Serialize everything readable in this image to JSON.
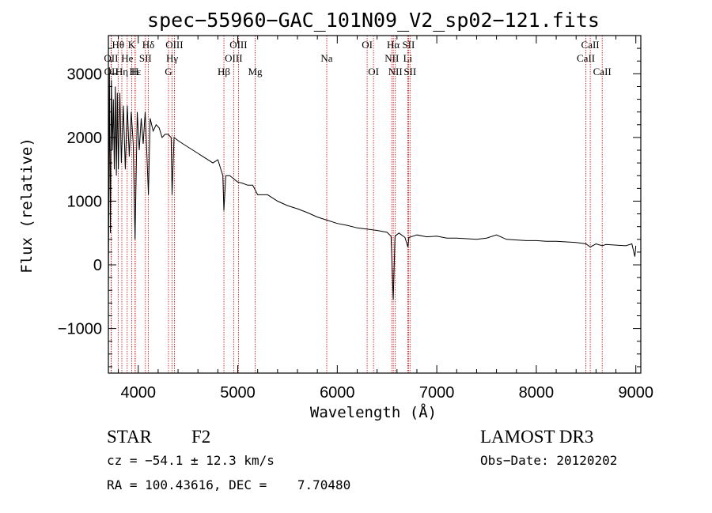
{
  "chart_data": {
    "type": "line",
    "title": "spec−55960−GAC_101N09_V2_sp02−121.fits",
    "xlabel": "Wavelength (Å)",
    "ylabel": "Flux (relative)",
    "xlim": [
      3700,
      9050
    ],
    "ylim": [
      -1700,
      3600
    ],
    "x_ticks": [
      4000,
      5000,
      6000,
      7000,
      8000,
      9000
    ],
    "x_tick_labels": [
      "4000",
      "5000",
      "6000",
      "7000",
      "8000",
      "9000"
    ],
    "y_ticks": [
      -1000,
      0,
      1000,
      2000,
      3000
    ],
    "y_tick_labels": [
      "−1000",
      "0",
      "1000",
      "2000",
      "3000"
    ],
    "grid": false,
    "series": [
      {
        "name": "spectrum",
        "x": [
          3700,
          3710,
          3720,
          3730,
          3740,
          3750,
          3760,
          3770,
          3780,
          3790,
          3800,
          3815,
          3830,
          3850,
          3870,
          3890,
          3910,
          3930,
          3950,
          3968,
          3990,
          4010,
          4030,
          4050,
          4070,
          4090,
          4102,
          4120,
          4150,
          4180,
          4210,
          4240,
          4270,
          4300,
          4330,
          4340,
          4360,
          4400,
          4450,
          4500,
          4550,
          4600,
          4650,
          4700,
          4750,
          4800,
          4850,
          4861,
          4880,
          4920,
          4960,
          5000,
          5050,
          5100,
          5150,
          5200,
          5300,
          5400,
          5500,
          5600,
          5700,
          5800,
          5900,
          6000,
          6100,
          6200,
          6300,
          6400,
          6500,
          6540,
          6563,
          6580,
          6620,
          6680,
          6710,
          6720,
          6760,
          6800,
          6900,
          7000,
          7100,
          7200,
          7300,
          7400,
          7500,
          7600,
          7700,
          7800,
          7900,
          8000,
          8100,
          8200,
          8300,
          8400,
          8500,
          8542,
          8600,
          8662,
          8700,
          8800,
          8900,
          8960,
          8990,
          9000
        ],
        "y": [
          -400,
          3100,
          500,
          2900,
          1800,
          2600,
          1500,
          2800,
          1400,
          2700,
          1500,
          2700,
          1600,
          2500,
          1500,
          2500,
          1700,
          2400,
          1900,
          400,
          2400,
          1800,
          2300,
          1900,
          2400,
          1600,
          1100,
          2300,
          2100,
          2200,
          2150,
          2000,
          2050,
          2050,
          2000,
          1100,
          2000,
          1950,
          1900,
          1850,
          1800,
          1750,
          1700,
          1650,
          1600,
          1650,
          1400,
          850,
          1400,
          1400,
          1350,
          1300,
          1280,
          1250,
          1250,
          1100,
          1100,
          1000,
          930,
          880,
          820,
          750,
          700,
          650,
          620,
          580,
          560,
          540,
          510,
          450,
          -550,
          450,
          500,
          430,
          280,
          430,
          450,
          470,
          440,
          450,
          420,
          420,
          410,
          400,
          420,
          470,
          400,
          390,
          380,
          380,
          370,
          370,
          360,
          350,
          330,
          280,
          330,
          300,
          320,
          310,
          300,
          330,
          130,
          300
        ]
      }
    ],
    "spectral_lines": [
      {
        "label": "Hθ",
        "wavelength": 3798,
        "row": 1
      },
      {
        "label": "OII",
        "wavelength": 3727,
        "row": 2
      },
      {
        "label": "OII",
        "wavelength": 3729,
        "row": 3
      },
      {
        "label": "Hη",
        "wavelength": 3835,
        "row": 3
      },
      {
        "label": "He",
        "wavelength": 3889,
        "row": 2
      },
      {
        "label": "K",
        "wavelength": 3934,
        "row": 1
      },
      {
        "label": "Hε",
        "wavelength": 3970,
        "row": 3
      },
      {
        "label": "SII",
        "wavelength": 4072,
        "row": 2
      },
      {
        "label": "Hδ",
        "wavelength": 4102,
        "row": 1
      },
      {
        "label": "H",
        "wavelength": 3968,
        "row": 3
      },
      {
        "label": "Hγ",
        "wavelength": 4340,
        "row": 2
      },
      {
        "label": "OIII",
        "wavelength": 4363,
        "row": 1
      },
      {
        "label": "G",
        "wavelength": 4304,
        "row": 3
      },
      {
        "label": "Hβ",
        "wavelength": 4861,
        "row": 3
      },
      {
        "label": "OIII",
        "wavelength": 4959,
        "row": 2
      },
      {
        "label": "OIII",
        "wavelength": 5007,
        "row": 1
      },
      {
        "label": "Mg",
        "wavelength": 5175,
        "row": 3
      },
      {
        "label": "Na",
        "wavelength": 5894,
        "row": 2
      },
      {
        "label": "OI",
        "wavelength": 6300,
        "row": 1
      },
      {
        "label": "OI",
        "wavelength": 6364,
        "row": 3
      },
      {
        "label": "NII",
        "wavelength": 6548,
        "row": 2
      },
      {
        "label": "Hα",
        "wavelength": 6563,
        "row": 1
      },
      {
        "label": "NII",
        "wavelength": 6583,
        "row": 3
      },
      {
        "label": "SII",
        "wavelength": 6716,
        "row": 1
      },
      {
        "label": "Li",
        "wavelength": 6708,
        "row": 2
      },
      {
        "label": "SII",
        "wavelength": 6731,
        "row": 3
      },
      {
        "label": "CaII",
        "wavelength": 8498,
        "row": 2
      },
      {
        "label": "CaII",
        "wavelength": 8542,
        "row": 1
      },
      {
        "label": "CaII",
        "wavelength": 8662,
        "row": 3
      }
    ],
    "line_color": "#000000",
    "marker_color": "#cc0000"
  },
  "info": {
    "object_class": "STAR",
    "subclass": "F2",
    "survey": "LAMOST DR3",
    "redshift": "cz = −54.1 ± 12.3 km/s",
    "obs_date": "Obs−Date: 20120202",
    "coords": "RA = 100.43616, DEC =    7.70480"
  }
}
